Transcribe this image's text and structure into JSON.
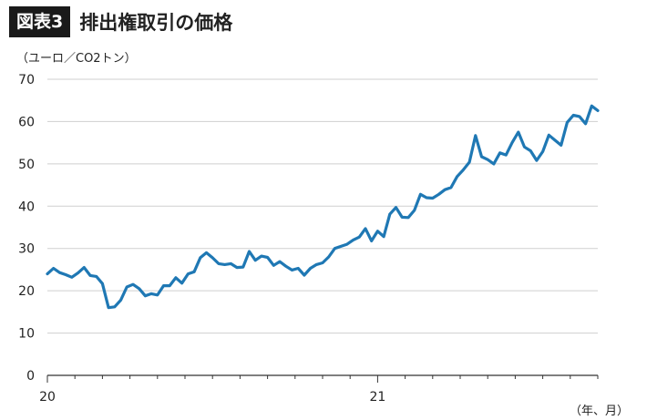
{
  "header": {
    "badge": "図表3",
    "title": "排出権取引の価格"
  },
  "chart_data": {
    "type": "line",
    "title": "排出権取引の価格",
    "ylabel": "（ユーロ／CO2トン）",
    "xlabel": "（年、月）",
    "ylim": [
      0,
      70
    ],
    "yticks": [
      0,
      10,
      20,
      30,
      40,
      50,
      60,
      70
    ],
    "xticks": [
      "20",
      "21"
    ],
    "grid": "horizontal",
    "color": "#1f78b4",
    "series": [
      {
        "values": [
          24.0,
          25.3,
          24.3,
          23.8,
          23.2,
          24.2,
          25.5,
          23.6,
          23.4,
          21.7,
          16.0,
          16.2,
          17.8,
          20.9,
          21.5,
          20.5,
          18.8,
          19.3,
          19.0,
          21.2,
          21.2,
          23.1,
          21.8,
          24.0,
          24.5,
          27.8,
          29.0,
          27.8,
          26.4,
          26.2,
          26.4,
          25.5,
          25.6,
          29.3,
          27.2,
          28.2,
          27.9,
          26.0,
          26.9,
          25.8,
          24.9,
          25.3,
          23.7,
          25.3,
          26.2,
          26.6,
          28.0,
          30.0,
          30.5,
          31.0,
          32.0,
          32.7,
          34.7,
          31.8,
          34.1,
          32.8,
          38.1,
          39.7,
          37.4,
          37.3,
          39.0,
          42.8,
          42.0,
          41.9,
          42.8,
          43.9,
          44.4,
          47.0,
          48.6,
          50.4,
          56.7,
          51.7,
          51.0,
          50.0,
          52.6,
          52.1,
          55.0,
          57.5,
          54.0,
          53.1,
          50.8,
          52.9,
          56.8,
          55.6,
          54.4,
          59.8,
          61.5,
          61.2,
          59.5,
          63.7,
          62.6
        ]
      }
    ]
  }
}
